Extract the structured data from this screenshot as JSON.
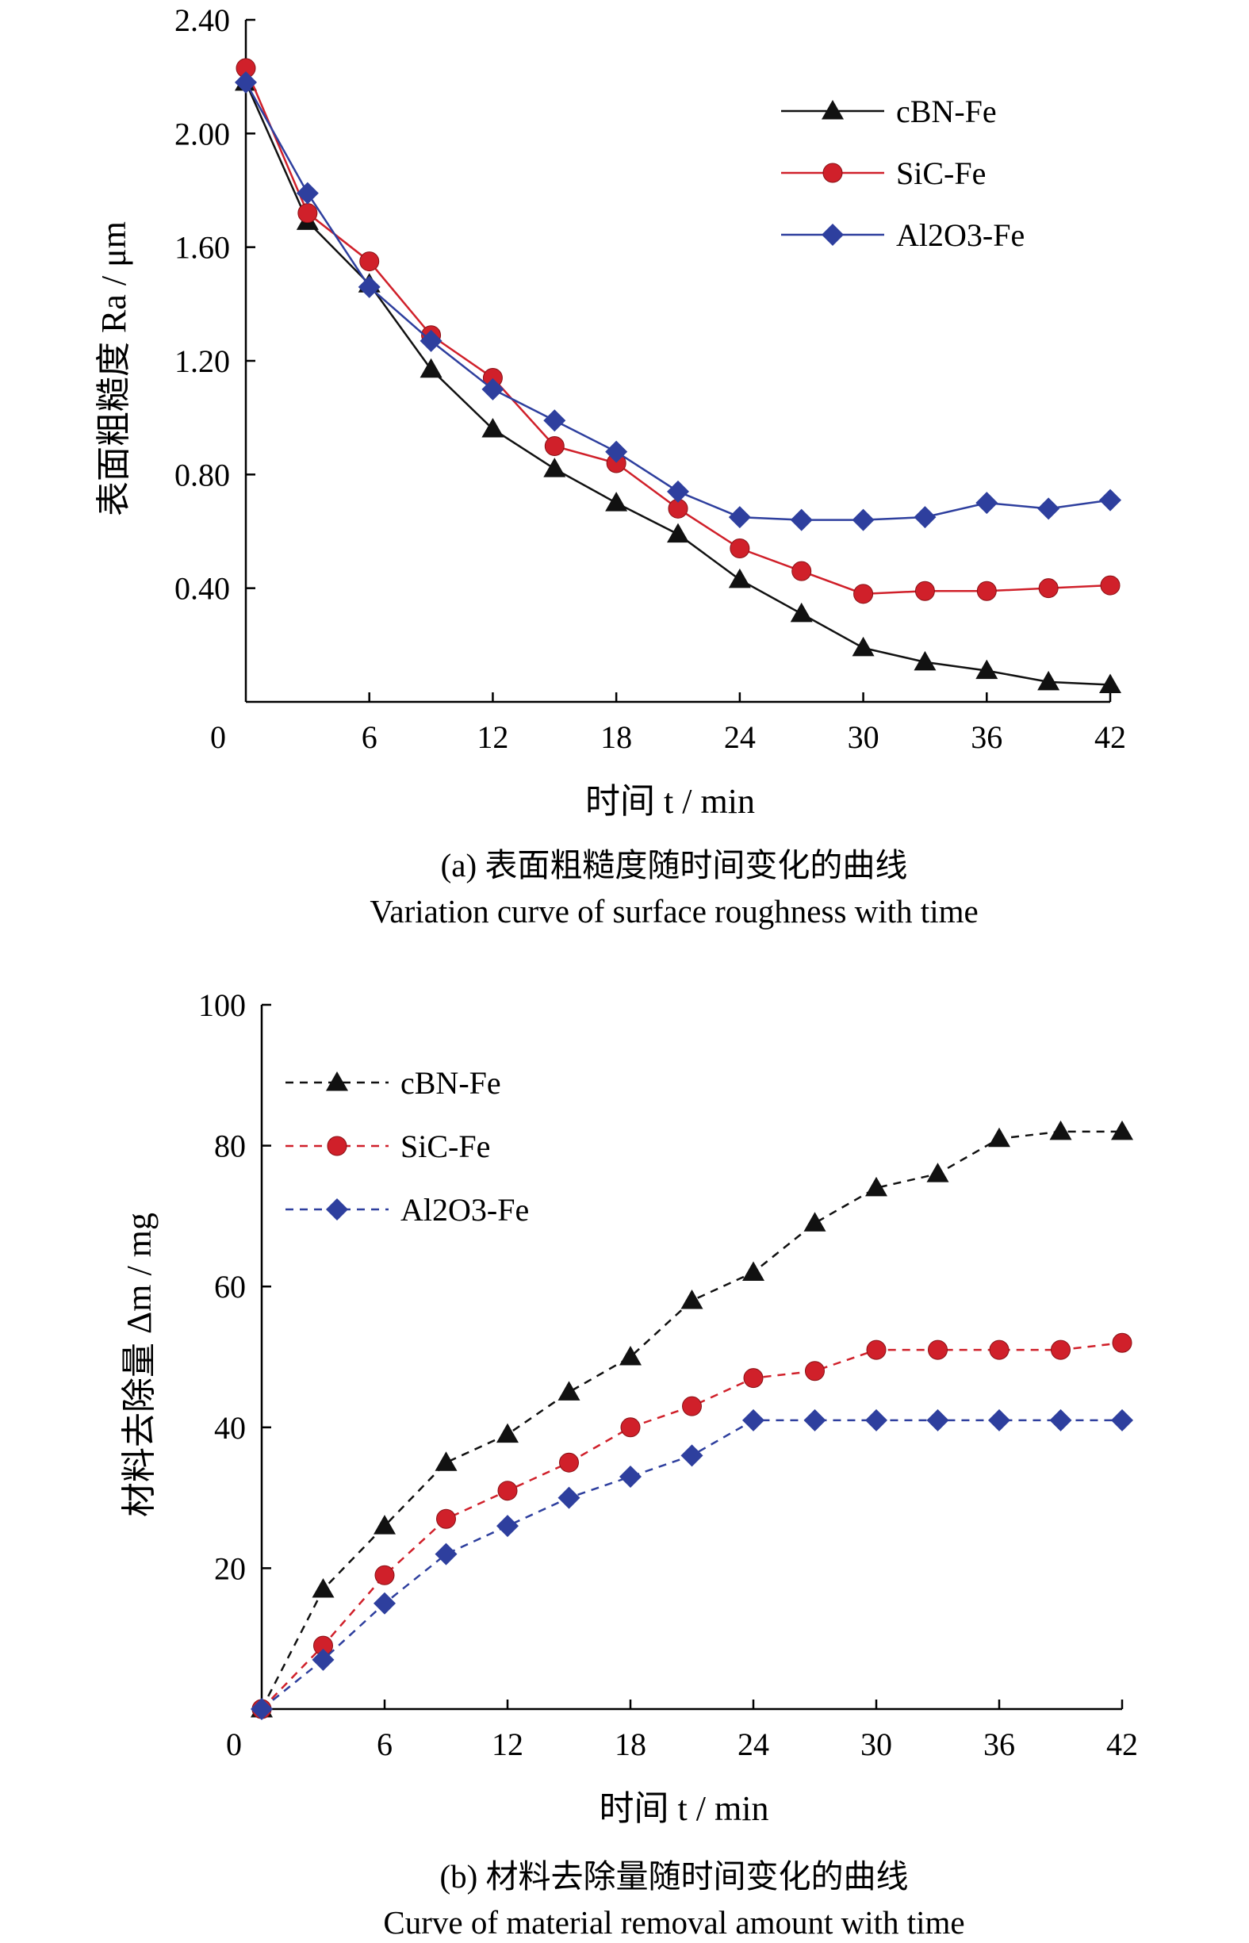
{
  "chart_data": [
    {
      "type": "line",
      "caption_cn": "(a) 表面粗糙度随时间变化的曲线",
      "caption_en": "Variation curve of surface roughness with time",
      "xlabel": "时间 t / min",
      "ylabel": "表面粗糙度 Ra / μm",
      "x_ticks": [
        "0",
        "6",
        "12",
        "18",
        "24",
        "30",
        "36",
        "42"
      ],
      "y_ticks": [
        "0.40",
        "0.80",
        "1.20",
        "1.60",
        "2.00",
        "2.40"
      ],
      "xlim": [
        0,
        42
      ],
      "ylim": [
        0,
        2.4
      ],
      "line_style": "solid",
      "legend_position": "top-right",
      "x": [
        0,
        3,
        6,
        9,
        12,
        15,
        18,
        21,
        24,
        27,
        30,
        33,
        36,
        39,
        42
      ],
      "series": [
        {
          "name": "cBN-Fe",
          "marker": "triangle",
          "color": "#111111",
          "values": [
            2.18,
            1.69,
            1.47,
            1.17,
            0.96,
            0.82,
            0.7,
            0.59,
            0.43,
            0.31,
            0.19,
            0.14,
            0.11,
            0.07,
            0.06
          ]
        },
        {
          "name": "SiC-Fe",
          "marker": "circle",
          "color": "#d0202a",
          "values": [
            2.23,
            1.72,
            1.55,
            1.29,
            1.14,
            0.9,
            0.84,
            0.68,
            0.54,
            0.46,
            0.38,
            0.39,
            0.39,
            0.4,
            0.41
          ]
        },
        {
          "name": "Al2O3-Fe",
          "marker": "diamond",
          "color": "#2e3f9e",
          "values": [
            2.18,
            1.79,
            1.46,
            1.27,
            1.1,
            0.99,
            0.88,
            0.74,
            0.65,
            0.64,
            0.64,
            0.65,
            0.7,
            0.68,
            0.71
          ]
        }
      ]
    },
    {
      "type": "line",
      "caption_cn": "(b) 材料去除量随时间变化的曲线",
      "caption_en": "Curve of material removal amount with time",
      "xlabel": "时间 t / min",
      "ylabel": "材料去除量 Δm / mg",
      "x_ticks": [
        "0",
        "6",
        "12",
        "18",
        "24",
        "30",
        "36",
        "42"
      ],
      "y_ticks": [
        "20",
        "40",
        "60",
        "80",
        "100"
      ],
      "xlim": [
        0,
        42
      ],
      "ylim": [
        0,
        100
      ],
      "line_style": "dashed",
      "legend_position": "top-left",
      "x": [
        0,
        3,
        6,
        9,
        12,
        15,
        18,
        21,
        24,
        27,
        30,
        33,
        36,
        39,
        42
      ],
      "series": [
        {
          "name": "cBN-Fe",
          "marker": "triangle",
          "color": "#111111",
          "values": [
            0,
            17,
            26,
            35,
            39,
            45,
            50,
            58,
            62,
            69,
            74,
            76,
            81,
            82,
            82
          ]
        },
        {
          "name": "SiC-Fe",
          "marker": "circle",
          "color": "#d0202a",
          "values": [
            0,
            9,
            19,
            27,
            31,
            35,
            40,
            43,
            47,
            48,
            51,
            51,
            51,
            51,
            52
          ]
        },
        {
          "name": "Al2O3-Fe",
          "marker": "diamond",
          "color": "#2e3f9e",
          "values": [
            0,
            7,
            15,
            22,
            26,
            30,
            33,
            36,
            41,
            41,
            41,
            41,
            41,
            41,
            41
          ]
        }
      ]
    }
  ]
}
